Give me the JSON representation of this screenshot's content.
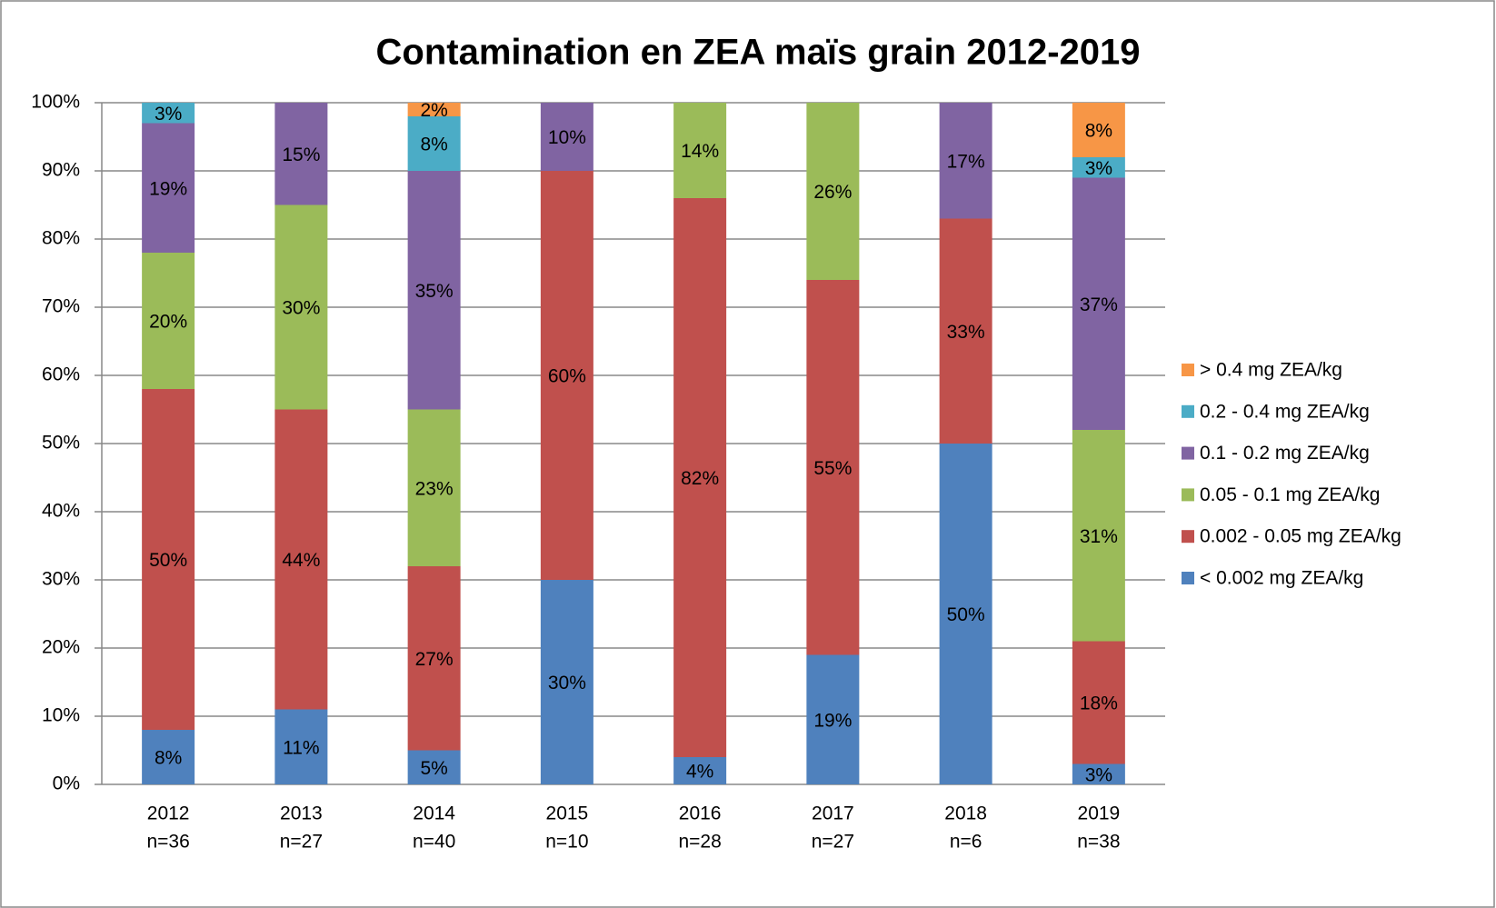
{
  "chart_data": {
    "type": "stacked_bar",
    "title": "Contamination en ZEA maïs grain 2012-2019",
    "categories": [
      "2012",
      "2013",
      "2014",
      "2015",
      "2016",
      "2017",
      "2018",
      "2019"
    ],
    "sample_sizes": [
      "n=36",
      "n=27",
      "n=40",
      "n=10",
      "n=28",
      "n=27",
      "n=6",
      "n=38"
    ],
    "series": [
      {
        "name": "< 0.002 mg ZEA/kg",
        "color": "#4f81bd",
        "values": [
          8,
          11,
          5,
          30,
          4,
          19,
          50,
          3
        ],
        "value_labels": [
          "8%",
          "11%",
          "5%",
          "30%",
          "4%",
          "19%",
          "50%",
          "3%"
        ]
      },
      {
        "name": "0.002 - 0.05 mg ZEA/kg",
        "color": "#c0504d",
        "values": [
          50,
          44,
          27,
          60,
          82,
          55,
          33,
          18
        ],
        "value_labels": [
          "50%",
          "44%",
          "27%",
          "60%",
          "82%",
          "55%",
          "33%",
          "18%"
        ]
      },
      {
        "name": "0.05 - 0.1 mg ZEA/kg",
        "color": "#9bbb59",
        "values": [
          20,
          30,
          23,
          null,
          14,
          26,
          null,
          31
        ],
        "value_labels": [
          "20%",
          "30%",
          "23%",
          null,
          "14%",
          "26%",
          null,
          "31%"
        ]
      },
      {
        "name": "0.1 - 0.2 mg ZEA/kg",
        "color": "#8064a2",
        "values": [
          19,
          15,
          35,
          10,
          null,
          null,
          17,
          37
        ],
        "value_labels": [
          "19%",
          "15%",
          "35%",
          "10%",
          null,
          null,
          "17%",
          "37%"
        ]
      },
      {
        "name": "0.2 - 0.4 mg ZEA/kg",
        "color": "#4bacc6",
        "values": [
          3,
          null,
          8,
          null,
          null,
          null,
          null,
          3
        ],
        "value_labels": [
          "3%",
          null,
          "8%",
          null,
          null,
          null,
          null,
          "3%"
        ]
      },
      {
        "name": "> 0.4 mg ZEA/kg",
        "color": "#f79646",
        "values": [
          null,
          null,
          2,
          null,
          null,
          null,
          null,
          8
        ],
        "value_labels": [
          null,
          null,
          "2%",
          null,
          null,
          null,
          null,
          "8%"
        ]
      }
    ],
    "ylim": [
      0,
      100
    ],
    "yticks": [
      {
        "value": 0,
        "label": "0%"
      },
      {
        "value": 10,
        "label": "10%"
      },
      {
        "value": 20,
        "label": "20%"
      },
      {
        "value": 30,
        "label": "30%"
      },
      {
        "value": 40,
        "label": "40%"
      },
      {
        "value": 50,
        "label": "50%"
      },
      {
        "value": 60,
        "label": "60%"
      },
      {
        "value": 70,
        "label": "70%"
      },
      {
        "value": 80,
        "label": "80%"
      },
      {
        "value": 90,
        "label": "90%"
      },
      {
        "value": 100,
        "label": "100%"
      }
    ],
    "grid": true,
    "legend": "right"
  }
}
